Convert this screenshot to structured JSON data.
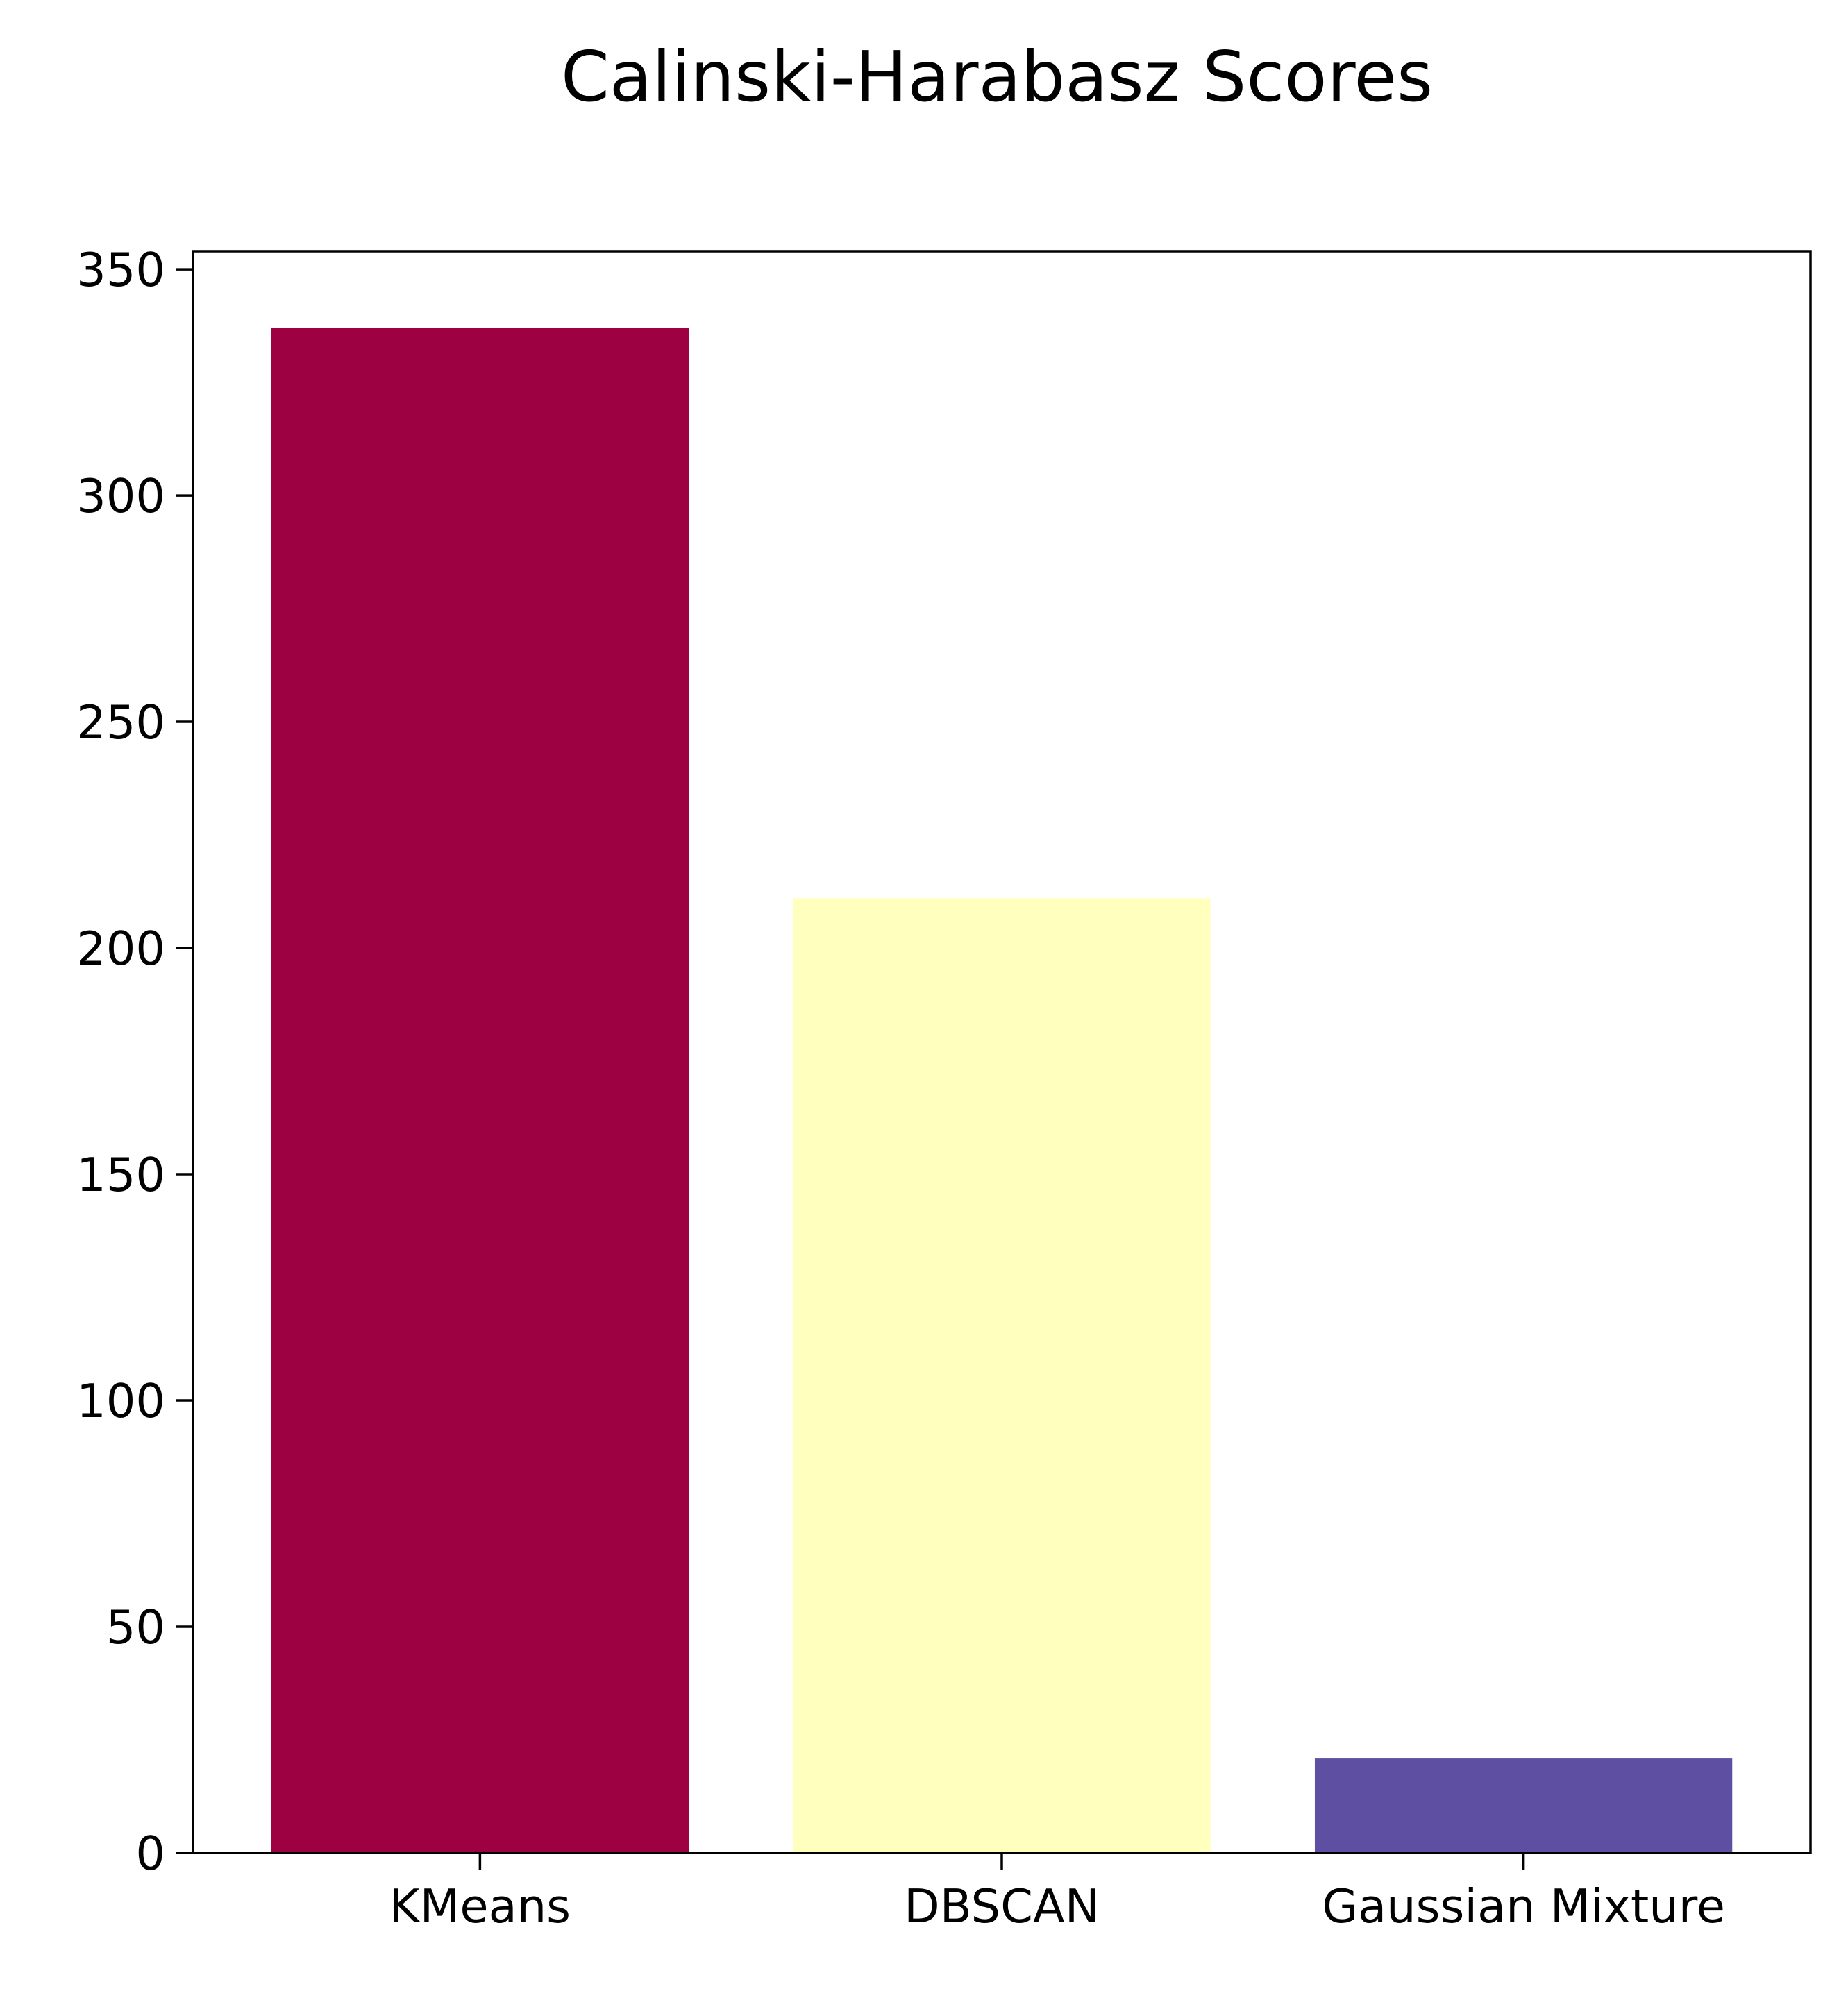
{
  "chart_data": {
    "type": "bar",
    "title": "Calinski-Harabasz Scores",
    "xlabel": "",
    "ylabel": "",
    "categories": [
      "KMeans",
      "DBSCAN",
      "Gaussian Mixture"
    ],
    "values": [
      337,
      211,
      21
    ],
    "colors": [
      "#9e0142",
      "#ffffbe",
      "#5e4fa2"
    ],
    "ylim": [
      0,
      354
    ],
    "yticks": [
      0,
      50,
      100,
      150,
      200,
      250,
      300,
      350
    ],
    "grid": false,
    "legend": "none"
  }
}
